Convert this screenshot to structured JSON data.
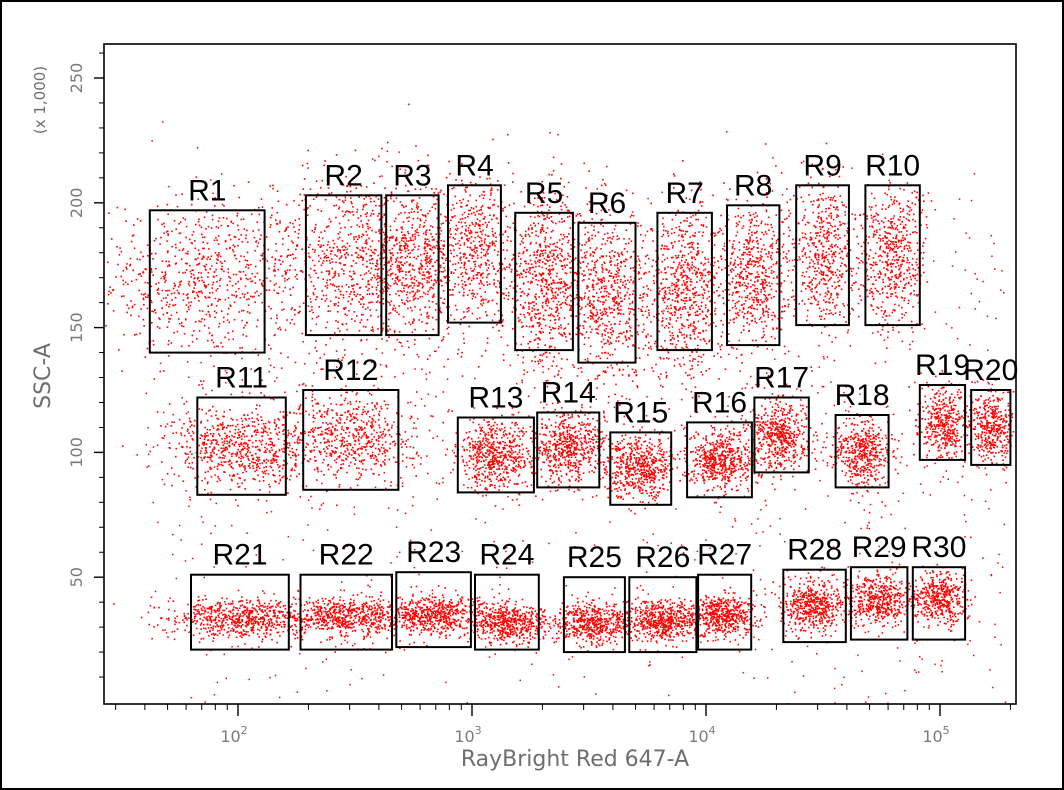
{
  "chart_data": {
    "type": "scatter",
    "title": "",
    "xlabel": "RayBright Red 647-A",
    "ylabel": "SSC-A",
    "y_multiplier_label": "(x 1,000)",
    "x_scale": "log",
    "x_range": [
      30,
      200000
    ],
    "y_range": [
      0,
      262
    ],
    "x_tick_labels": [
      {
        "value": 100,
        "base": "10",
        "exp": "2"
      },
      {
        "value": 1000,
        "base": "10",
        "exp": "3"
      },
      {
        "value": 10000,
        "base": "10",
        "exp": "4"
      },
      {
        "value": 100000,
        "base": "10",
        "exp": "5"
      }
    ],
    "y_ticks": [
      50,
      100,
      150,
      200,
      250
    ],
    "y_tick_labels": [
      "50",
      "100",
      "150",
      "200",
      "250"
    ],
    "grid": false,
    "point_color": "#ff0000",
    "gate_color": "#000000",
    "gates": [
      {
        "label": "R1",
        "x_range": [
          42,
          130
        ],
        "y_range": [
          140,
          197
        ],
        "center": [
          70,
          170
        ],
        "spread": [
          0.22,
          16
        ],
        "n": 700
      },
      {
        "label": "R2",
        "x_range": [
          195,
          410
        ],
        "y_range": [
          147,
          203
        ],
        "center": [
          290,
          178
        ],
        "spread": [
          0.16,
          18
        ],
        "n": 650
      },
      {
        "label": "R3",
        "x_range": [
          430,
          720
        ],
        "y_range": [
          147,
          203
        ],
        "center": [
          560,
          177
        ],
        "spread": [
          0.1,
          16
        ],
        "n": 600
      },
      {
        "label": "R4",
        "x_range": [
          790,
          1330
        ],
        "y_range": [
          152,
          207
        ],
        "center": [
          1040,
          181
        ],
        "spread": [
          0.1,
          16
        ],
        "n": 500
      },
      {
        "label": "R5",
        "x_range": [
          1530,
          2700
        ],
        "y_range": [
          141,
          196
        ],
        "center": [
          2050,
          168
        ],
        "spread": [
          0.09,
          17
        ],
        "n": 650
      },
      {
        "label": "R6",
        "x_range": [
          2850,
          5000
        ],
        "y_range": [
          136,
          192
        ],
        "center": [
          3780,
          162
        ],
        "spread": [
          0.09,
          17
        ],
        "n": 650
      },
      {
        "label": "R7",
        "x_range": [
          6200,
          10600
        ],
        "y_range": [
          141,
          196
        ],
        "center": [
          8100,
          165
        ],
        "spread": [
          0.08,
          17
        ],
        "n": 650
      },
      {
        "label": "R8",
        "x_range": [
          12300,
          20600
        ],
        "y_range": [
          143,
          199
        ],
        "center": [
          15900,
          171
        ],
        "spread": [
          0.07,
          16
        ],
        "n": 550
      },
      {
        "label": "R9",
        "x_range": [
          24300,
          40800
        ],
        "y_range": [
          151,
          207
        ],
        "center": [
          31500,
          180
        ],
        "spread": [
          0.07,
          15
        ],
        "n": 500
      },
      {
        "label": "R10",
        "x_range": [
          48000,
          82000
        ],
        "y_range": [
          151,
          207
        ],
        "center": [
          62500,
          178
        ],
        "spread": [
          0.07,
          15
        ],
        "n": 500
      },
      {
        "label": "R11",
        "x_range": [
          67,
          160
        ],
        "y_range": [
          83,
          122
        ],
        "center": [
          103,
          102
        ],
        "spread": [
          0.15,
          8
        ],
        "n": 650
      },
      {
        "label": "R12",
        "x_range": [
          190,
          485
        ],
        "y_range": [
          85,
          125
        ],
        "center": [
          300,
          107
        ],
        "spread": [
          0.14,
          9
        ],
        "n": 600
      },
      {
        "label": "R13",
        "x_range": [
          870,
          1840
        ],
        "y_range": [
          84,
          114
        ],
        "center": [
          1270,
          99
        ],
        "spread": [
          0.08,
          7
        ],
        "n": 550
      },
      {
        "label": "R14",
        "x_range": [
          1900,
          3500
        ],
        "y_range": [
          86,
          116
        ],
        "center": [
          2550,
          102
        ],
        "spread": [
          0.08,
          7
        ],
        "n": 550
      },
      {
        "label": "R15",
        "x_range": [
          3900,
          7100
        ],
        "y_range": [
          79,
          108
        ],
        "center": [
          5200,
          94
        ],
        "spread": [
          0.07,
          6
        ],
        "n": 550
      },
      {
        "label": "R16",
        "x_range": [
          8300,
          15700
        ],
        "y_range": [
          82,
          112
        ],
        "center": [
          11500,
          97
        ],
        "spread": [
          0.07,
          6
        ],
        "n": 550
      },
      {
        "label": "R17",
        "x_range": [
          16100,
          27500
        ],
        "y_range": [
          92,
          122
        ],
        "center": [
          20700,
          107
        ],
        "spread": [
          0.06,
          7
        ],
        "n": 500
      },
      {
        "label": "R18",
        "x_range": [
          35800,
          60300
        ],
        "y_range": [
          86,
          115
        ],
        "center": [
          46600,
          100
        ],
        "spread": [
          0.06,
          7
        ],
        "n": 450
      },
      {
        "label": "R19",
        "x_range": [
          82000,
          128000
        ],
        "y_range": [
          97,
          127
        ],
        "center": [
          103000,
          112
        ],
        "spread": [
          0.05,
          7
        ],
        "n": 400
      },
      {
        "label": "R20",
        "x_range": [
          136000,
          200000
        ],
        "y_range": [
          95,
          125
        ],
        "center": [
          166000,
          110
        ],
        "spread": [
          0.05,
          7
        ],
        "n": 400
      },
      {
        "label": "R21",
        "x_range": [
          63,
          165
        ],
        "y_range": [
          21,
          51
        ],
        "center": [
          103,
          34
        ],
        "spread": [
          0.15,
          4
        ],
        "n": 650
      },
      {
        "label": "R22",
        "x_range": [
          185,
          455
        ],
        "y_range": [
          21,
          51
        ],
        "center": [
          290,
          34
        ],
        "spread": [
          0.13,
          4
        ],
        "n": 600
      },
      {
        "label": "R23",
        "x_range": [
          475,
          990
        ],
        "y_range": [
          22,
          52
        ],
        "center": [
          680,
          35
        ],
        "spread": [
          0.1,
          4
        ],
        "n": 550
      },
      {
        "label": "R24",
        "x_range": [
          1030,
          1930
        ],
        "y_range": [
          21,
          51
        ],
        "center": [
          1420,
          32
        ],
        "spread": [
          0.09,
          4
        ],
        "n": 550
      },
      {
        "label": "R25",
        "x_range": [
          2470,
          4500
        ],
        "y_range": [
          20,
          50
        ],
        "center": [
          3300,
          32
        ],
        "spread": [
          0.08,
          4
        ],
        "n": 500
      },
      {
        "label": "R26",
        "x_range": [
          4700,
          9100
        ],
        "y_range": [
          20,
          50
        ],
        "center": [
          6400,
          33
        ],
        "spread": [
          0.08,
          4
        ],
        "n": 550
      },
      {
        "label": "R27",
        "x_range": [
          9250,
          15600
        ],
        "y_range": [
          21,
          51
        ],
        "center": [
          11700,
          35
        ],
        "spread": [
          0.07,
          4
        ],
        "n": 500
      },
      {
        "label": "R28",
        "x_range": [
          21400,
          39600
        ],
        "y_range": [
          24,
          53
        ],
        "center": [
          29000,
          39
        ],
        "spread": [
          0.07,
          5
        ],
        "n": 500
      },
      {
        "label": "R29",
        "x_range": [
          41600,
          72500
        ],
        "y_range": [
          25,
          54
        ],
        "center": [
          54000,
          41
        ],
        "spread": [
          0.06,
          5
        ],
        "n": 450
      },
      {
        "label": "R30",
        "x_range": [
          76500,
          128000
        ],
        "y_range": [
          25,
          54
        ],
        "center": [
          98000,
          42
        ],
        "spread": [
          0.06,
          5
        ],
        "n": 450
      }
    ]
  }
}
